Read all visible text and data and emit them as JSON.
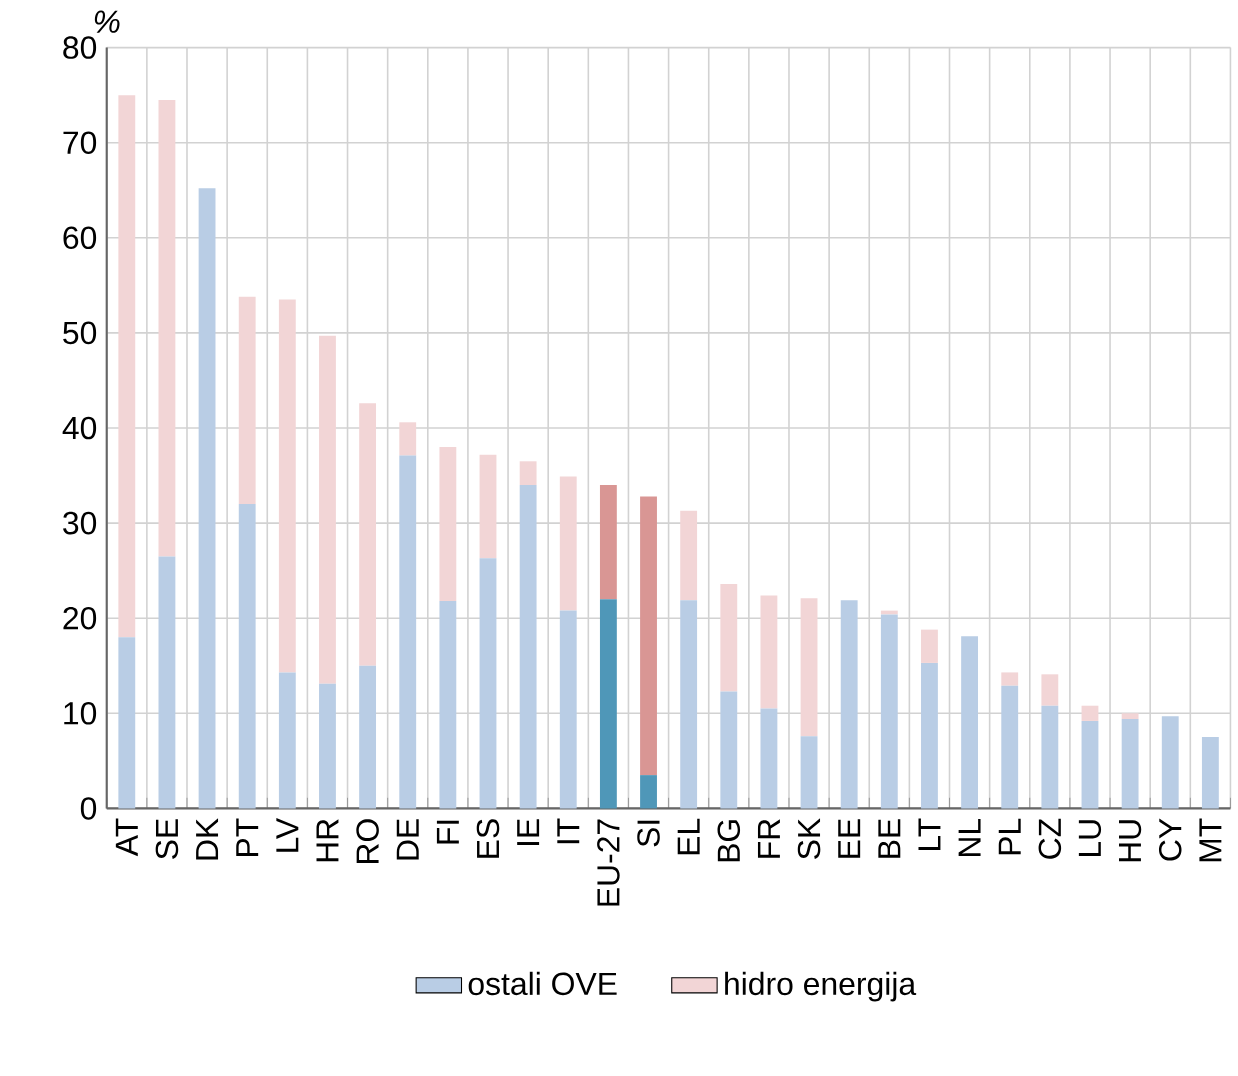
{
  "chart_data": {
    "type": "bar",
    "stacked": true,
    "ylabel": "%",
    "categories": [
      "AT",
      "SE",
      "DK",
      "PT",
      "LV",
      "HR",
      "RO",
      "DE",
      "FI",
      "ES",
      "IE",
      "IT",
      "EU-27",
      "SI",
      "EL",
      "BG",
      "FR",
      "SK",
      "EE",
      "BE",
      "LT",
      "NL",
      "PL",
      "CZ",
      "LU",
      "HU",
      "CY",
      "MT"
    ],
    "series": [
      {
        "name": "ostali OVE",
        "color": "#b9cde5",
        "colors": [
          "#b9cde5",
          "#b9cde5",
          "#b9cde5",
          "#b9cde5",
          "#b9cde5",
          "#b9cde5",
          "#b9cde5",
          "#b9cde5",
          "#b9cde5",
          "#b9cde5",
          "#b9cde5",
          "#b9cde5",
          "#4f97b8",
          "#4f97b8",
          "#b9cde5",
          "#b9cde5",
          "#b9cde5",
          "#b9cde5",
          "#b9cde5",
          "#b9cde5",
          "#b9cde5",
          "#b9cde5",
          "#b9cde5",
          "#b9cde5",
          "#b9cde5",
          "#b9cde5",
          "#b9cde5",
          "#b9cde5"
        ],
        "values": [
          18,
          26.5,
          65.2,
          32,
          14.3,
          13.1,
          15,
          37.1,
          21.8,
          26.3,
          34,
          20.8,
          22,
          3.5,
          21.9,
          12.3,
          10.5,
          7.6,
          21.9,
          20.4,
          15.3,
          18.1,
          12.9,
          10.8,
          9.2,
          9.4,
          9.7,
          7.5
        ]
      },
      {
        "name": "hidro energija",
        "color": "#f2d5d6",
        "colors": [
          "#f2d5d6",
          "#f2d5d6",
          "#f2d5d6",
          "#f2d5d6",
          "#f2d5d6",
          "#f2d5d6",
          "#f2d5d6",
          "#f2d5d6",
          "#f2d5d6",
          "#f2d5d6",
          "#f2d5d6",
          "#f2d5d6",
          "#d99694",
          "#d99694",
          "#f2d5d6",
          "#f2d5d6",
          "#f2d5d6",
          "#f2d5d6",
          "#f2d5d6",
          "#f2d5d6",
          "#f2d5d6",
          "#f2d5d6",
          "#f2d5d6",
          "#f2d5d6",
          "#f2d5d6",
          "#f2d5d6",
          "#f2d5d6",
          "#f2d5d6"
        ],
        "values": [
          57,
          48,
          null,
          21.8,
          39.2,
          36.6,
          27.6,
          3.5,
          16.2,
          10.9,
          2.5,
          14.1,
          12,
          29.3,
          9.4,
          11.3,
          11.9,
          14.5,
          null,
          0.4,
          3.5,
          null,
          1.4,
          3.3,
          1.6,
          0.6,
          0,
          0
        ]
      }
    ],
    "ylim": [
      0,
      80
    ],
    "yticks": [
      0,
      10,
      20,
      30,
      40,
      50,
      60,
      70,
      80
    ],
    "grid": true,
    "legend": "bottom"
  }
}
